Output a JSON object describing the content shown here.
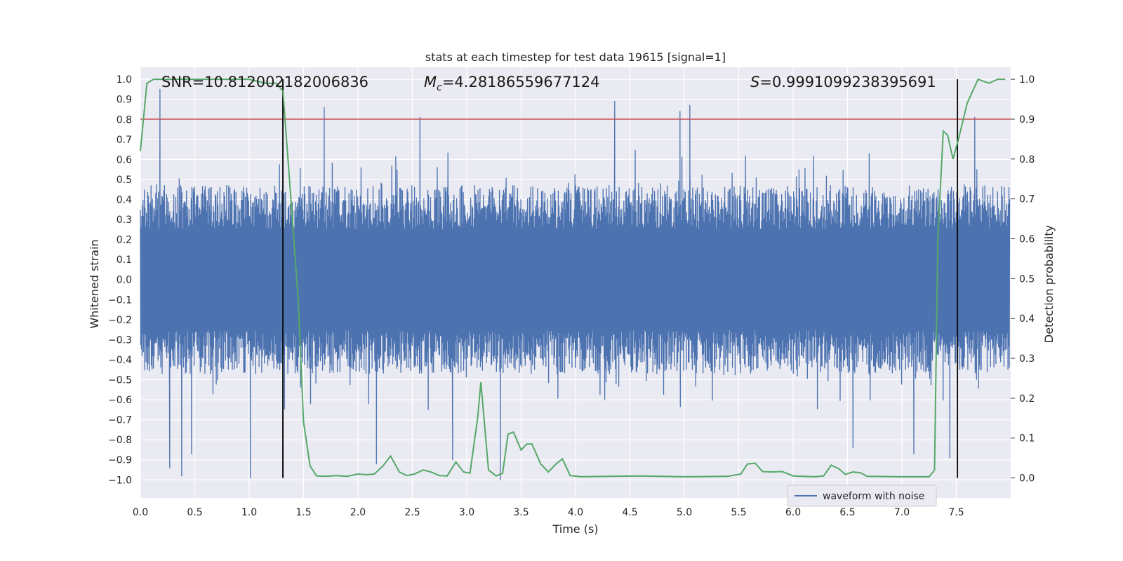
{
  "chart_data": {
    "type": "line",
    "title": "stats at each timestep for test data 19615 [signal=1]",
    "xlabel": "Time (s)",
    "ylabel_left": "Whitened strain",
    "ylabel_right": "Detection probability",
    "xlim": [
      0.0,
      8.0
    ],
    "ylim_left": [
      -1.09,
      1.06
    ],
    "ylim_right": [
      -0.05,
      1.03
    ],
    "x_ticks": [
      "0.0",
      "0.5",
      "1.0",
      "1.5",
      "2.0",
      "2.5",
      "3.0",
      "3.5",
      "4.0",
      "4.5",
      "5.0",
      "5.5",
      "6.0",
      "6.5",
      "7.0",
      "7.5"
    ],
    "y_left_ticks": [
      "1.0",
      "0.9",
      "0.8",
      "0.7",
      "0.6",
      "0.5",
      "0.4",
      "0.3",
      "0.2",
      "0.1",
      "0.0",
      "−0.1",
      "−0.2",
      "−0.3",
      "−0.4",
      "−0.5",
      "−0.6",
      "−0.7",
      "−0.8",
      "−0.9",
      "−1.0"
    ],
    "y_right_ticks": [
      "0.0",
      "0.1",
      "0.2",
      "0.3",
      "0.4",
      "0.5",
      "0.6",
      "0.7",
      "0.8",
      "0.9",
      "1.0"
    ],
    "grid": true,
    "annotations": {
      "snr": "SNR=10.812002182006836",
      "mc_symbol": "M",
      "mc_sub": "c",
      "mc_value": "=4.28186559677124",
      "s_symbol": "S",
      "s_value": "=0.9991099238395691"
    },
    "threshold": {
      "value": 0.9,
      "axis": "right",
      "color": "#c44e52"
    },
    "vertical_lines": [
      1.31,
      7.51
    ],
    "legend": {
      "entries": [
        "waveform with noise"
      ],
      "position": "bottom-right"
    },
    "series": [
      {
        "name": "waveform with noise",
        "axis": "left",
        "color": "#4c72b0",
        "x_range": [
          0.0,
          7.99
        ],
        "envelope_typical": [
          -0.45,
          0.45
        ],
        "notable_peaks": [
          {
            "x": 0.18,
            "y": 0.95
          },
          {
            "x": 1.69,
            "y": 0.86
          },
          {
            "x": 2.57,
            "y": 0.81
          },
          {
            "x": 4.36,
            "y": 0.89
          },
          {
            "x": 4.96,
            "y": 0.84
          },
          {
            "x": 5.05,
            "y": 0.87
          },
          {
            "x": 7.67,
            "y": 0.81
          }
        ],
        "notable_troughs": [
          {
            "x": 0.27,
            "y": -0.94
          },
          {
            "x": 0.38,
            "y": -0.98
          },
          {
            "x": 0.47,
            "y": -0.87
          },
          {
            "x": 1.01,
            "y": -0.99
          },
          {
            "x": 2.17,
            "y": -0.92
          },
          {
            "x": 2.87,
            "y": -0.9
          },
          {
            "x": 3.31,
            "y": -1.0
          },
          {
            "x": 6.55,
            "y": -0.84
          },
          {
            "x": 7.11,
            "y": -0.87
          },
          {
            "x": 7.44,
            "y": -0.89
          }
        ]
      },
      {
        "name": "detection probability",
        "axis": "right",
        "color": "#55a868",
        "x": [
          0.0,
          0.06,
          0.12,
          0.25,
          0.5,
          0.75,
          1.0,
          1.15,
          1.25,
          1.31,
          1.37,
          1.45,
          1.5,
          1.56,
          1.62,
          1.7,
          1.8,
          1.9,
          2.0,
          2.08,
          2.15,
          2.23,
          2.3,
          2.38,
          2.45,
          2.52,
          2.6,
          2.67,
          2.75,
          2.82,
          2.9,
          2.97,
          3.03,
          3.1,
          3.13,
          3.2,
          3.27,
          3.33,
          3.38,
          3.43,
          3.5,
          3.55,
          3.6,
          3.68,
          3.75,
          3.82,
          3.88,
          3.95,
          4.05,
          4.3,
          4.6,
          5.0,
          5.4,
          5.52,
          5.58,
          5.65,
          5.72,
          5.8,
          5.9,
          6.0,
          6.2,
          6.28,
          6.35,
          6.42,
          6.48,
          6.55,
          6.62,
          6.68,
          7.0,
          7.25,
          7.3,
          7.33,
          7.38,
          7.42,
          7.47,
          7.52,
          7.6,
          7.7,
          7.8,
          7.88,
          7.95
        ],
        "values": [
          0.82,
          0.99,
          1.0,
          1.0,
          1.0,
          1.0,
          1.0,
          0.99,
          0.99,
          0.97,
          0.75,
          0.45,
          0.14,
          0.03,
          0.005,
          0.004,
          0.006,
          0.004,
          0.01,
          0.008,
          0.01,
          0.03,
          0.055,
          0.015,
          0.006,
          0.01,
          0.02,
          0.015,
          0.006,
          0.005,
          0.04,
          0.015,
          0.012,
          0.15,
          0.24,
          0.02,
          0.005,
          0.012,
          0.11,
          0.115,
          0.07,
          0.085,
          0.085,
          0.035,
          0.015,
          0.035,
          0.048,
          0.006,
          0.003,
          0.004,
          0.005,
          0.003,
          0.004,
          0.01,
          0.035,
          0.037,
          0.016,
          0.015,
          0.016,
          0.005,
          0.003,
          0.005,
          0.032,
          0.023,
          0.009,
          0.015,
          0.013,
          0.004,
          0.003,
          0.003,
          0.02,
          0.6,
          0.87,
          0.86,
          0.8,
          0.85,
          0.94,
          1.0,
          0.99,
          1.0,
          1.0
        ]
      }
    ]
  }
}
